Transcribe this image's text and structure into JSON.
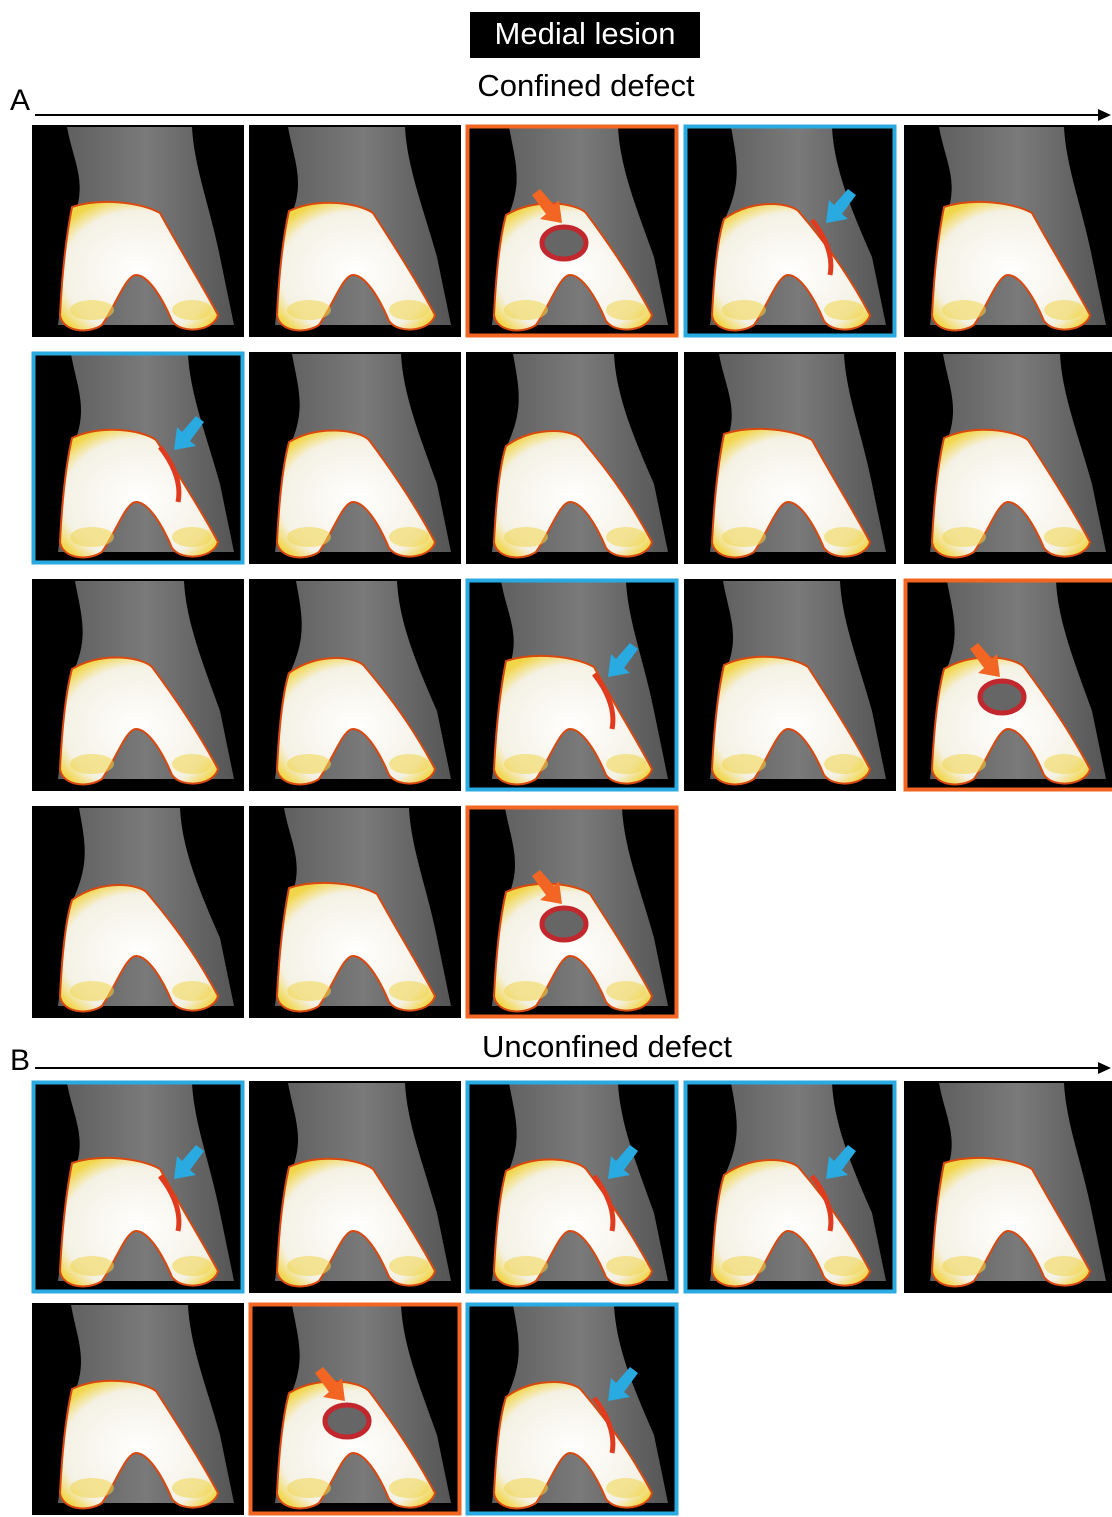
{
  "title": "Medial lesion",
  "panels": [
    {
      "label": "A",
      "caption": "Confined defect"
    },
    {
      "label": "B",
      "caption": "Unconfined defect"
    }
  ]
}
